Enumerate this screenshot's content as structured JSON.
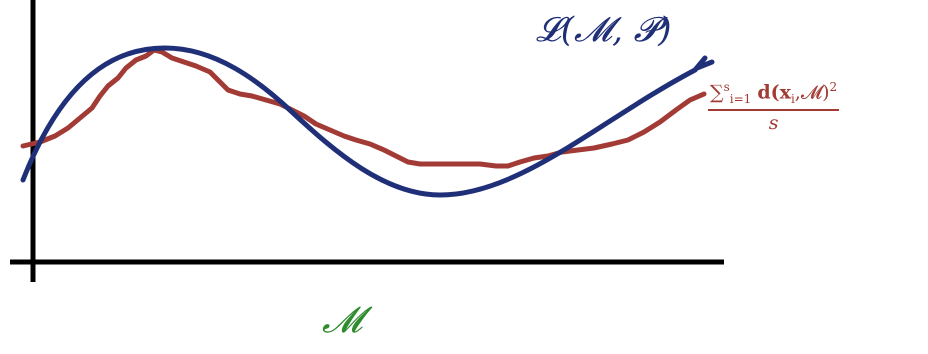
{
  "colors": {
    "axes": "#000000",
    "true_loss_curve": "#1f2f78",
    "empirical_loss_curve": "#a23b35",
    "manifold_label": "#2e8b2e"
  },
  "labels": {
    "true_loss": "𝓛(𝓜, 𝓟)",
    "manifold": "𝓜",
    "empirical_loss": {
      "sum_symbol": "∑",
      "sum_lower": "i=1",
      "sum_upper": "s",
      "term": "d(x",
      "term_sub": "i",
      "term_rest": ",𝓜)",
      "power": "2",
      "denominator": "s"
    }
  }
}
